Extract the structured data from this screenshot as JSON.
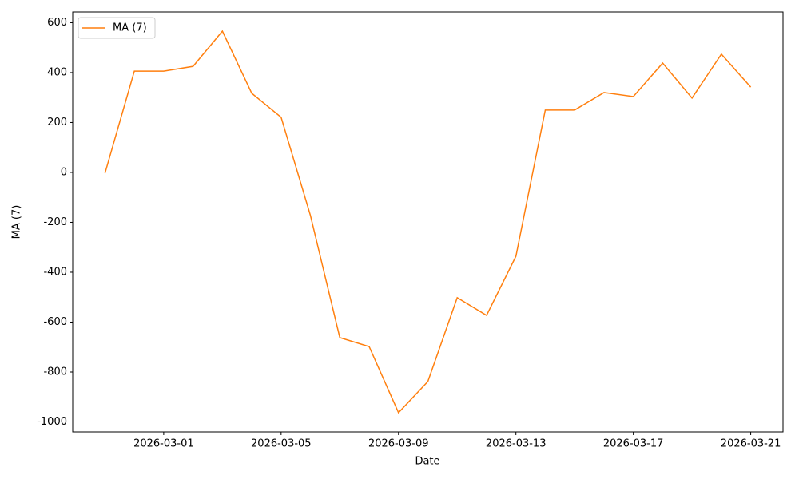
{
  "chart_data": {
    "type": "line",
    "x": [
      "2026-02-27",
      "2026-02-28",
      "2026-03-01",
      "2026-03-02",
      "2026-03-03",
      "2026-03-04",
      "2026-03-05",
      "2026-03-06",
      "2026-03-07",
      "2026-03-08",
      "2026-03-09",
      "2026-03-10",
      "2026-03-11",
      "2026-03-12",
      "2026-03-13",
      "2026-03-14",
      "2026-03-15",
      "2026-03-16",
      "2026-03-17",
      "2026-03-18",
      "2026-03-19",
      "2026-03-20",
      "2026-03-21"
    ],
    "series": [
      {
        "name": "MA (7)",
        "color": "#ff7f0e",
        "values": [
          -3,
          406,
          406,
          425,
          566,
          317,
          221,
          -173,
          -662,
          -698,
          -963,
          -838,
          -502,
          -573,
          -336,
          250,
          250,
          320,
          304,
          438,
          298,
          474,
          342
        ]
      }
    ],
    "xlabel": "Date",
    "ylabel": "MA (7)",
    "xlim": [
      "2026-02-25T21:36",
      "2026-03-22T02:24"
    ],
    "xticks": [
      "2026-03-01",
      "2026-03-05",
      "2026-03-09",
      "2026-03-13",
      "2026-03-17",
      "2026-03-21"
    ],
    "ylim": [
      -1040,
      643
    ],
    "yticks": [
      -1000,
      -800,
      -600,
      -400,
      -200,
      0,
      200,
      400,
      600
    ],
    "legend": "upper left",
    "grid": false
  }
}
